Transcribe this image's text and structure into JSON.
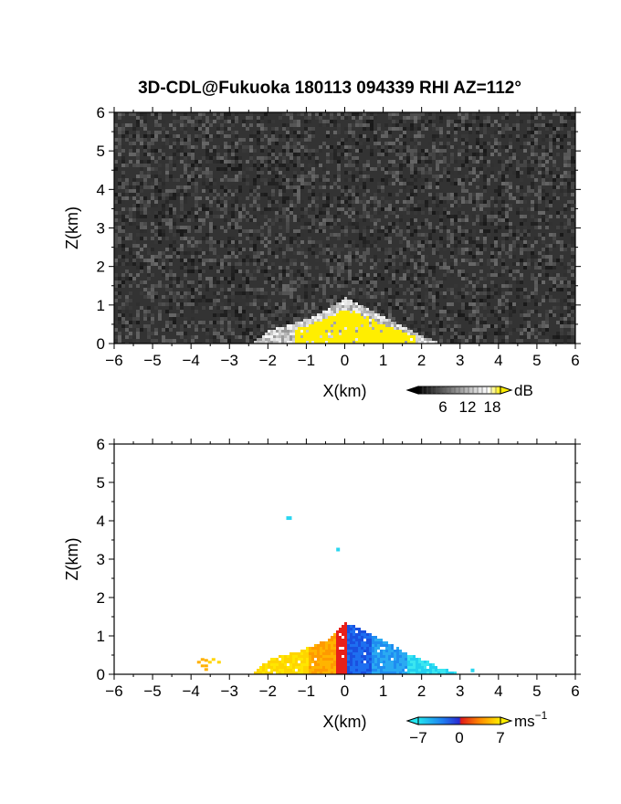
{
  "title": "3D-CDL@Fukuoka 180113 094339 RHI AZ=112°",
  "chart_data": [
    {
      "type": "heatmap",
      "panel": "intensity",
      "xlabel": "X(km)",
      "ylabel": "Z(km)",
      "xlim": [
        -6,
        6
      ],
      "ylim": [
        0,
        6
      ],
      "xticks": [
        -6,
        -5,
        -4,
        -3,
        -2,
        -1,
        0,
        1,
        2,
        3,
        4,
        5,
        6
      ],
      "yticks": [
        0,
        1,
        2,
        3,
        4,
        5,
        6
      ],
      "background": "noise",
      "colorbar": {
        "unit": "dB",
        "ticks": [
          "6",
          "12",
          "18"
        ],
        "range": [
          0,
          20
        ],
        "style": "grayscale-to-yellow"
      },
      "echo_profile": {
        "x": [
          -2.4,
          -2.0,
          -1.5,
          -1.0,
          -0.5,
          0.0,
          0.5,
          1.0,
          1.5,
          2.0,
          2.4
        ],
        "top_z": [
          0.0,
          0.3,
          0.45,
          0.6,
          0.85,
          1.15,
          0.9,
          0.65,
          0.4,
          0.15,
          0.0
        ]
      },
      "strong_echo_xrange": [
        -1.3,
        1.8
      ],
      "colors": {
        "noise": "#333333",
        "strong": "#ffee00"
      }
    },
    {
      "type": "heatmap",
      "panel": "doppler_velocity",
      "xlabel": "X(km)",
      "ylabel": "Z(km)",
      "xlim": [
        -6,
        6
      ],
      "ylim": [
        0,
        6
      ],
      "xticks": [
        -6,
        -5,
        -4,
        -3,
        -2,
        -1,
        0,
        1,
        2,
        3,
        4,
        5,
        6
      ],
      "yticks": [
        0,
        1,
        2,
        3,
        4,
        5,
        6
      ],
      "background": "none",
      "colorbar": {
        "unit": "ms",
        "unit_exponent": "−1",
        "ticks": [
          "−7",
          "0",
          "7"
        ],
        "range": [
          -7,
          7
        ],
        "style": "cyan-blue-red-yellow"
      },
      "echo_profile": {
        "x": [
          -2.4,
          -2.0,
          -1.5,
          -1.0,
          -0.5,
          0.0,
          0.5,
          1.0,
          1.5,
          2.0,
          2.4,
          2.9
        ],
        "top_z": [
          0.0,
          0.35,
          0.5,
          0.65,
          0.85,
          1.3,
          1.1,
          0.85,
          0.55,
          0.35,
          0.15,
          0.0
        ]
      },
      "velocity_sign": "positive for x<0, negative for x>0",
      "isolated_echoes": [
        {
          "x": -1.45,
          "z": 4.07,
          "v": -6
        },
        {
          "x": -0.15,
          "z": 3.25,
          "v": -6
        },
        {
          "x": -3.7,
          "z": 0.35,
          "v": 6
        },
        {
          "x": 3.35,
          "z": 0.1,
          "v": -6
        }
      ]
    }
  ]
}
